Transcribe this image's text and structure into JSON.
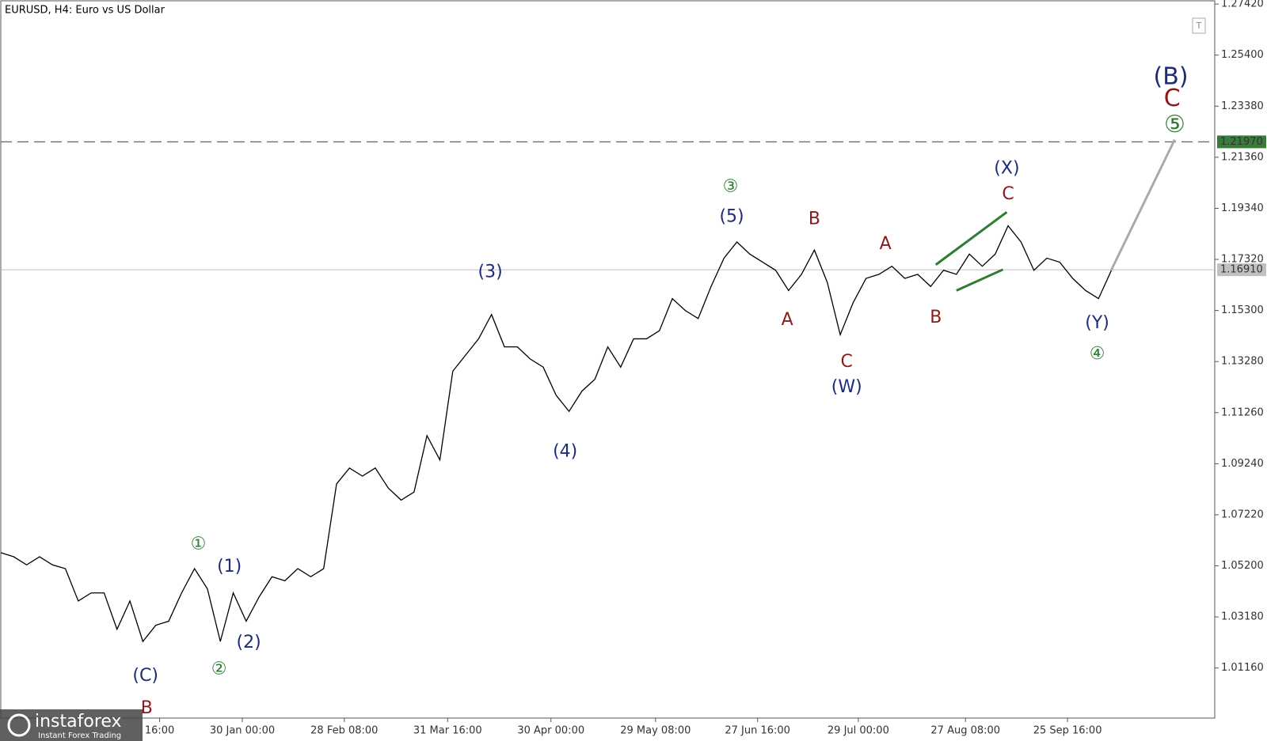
{
  "chart_data": {
    "type": "line",
    "title": "EURUSD, H4:  Euro vs US Dollar",
    "watermark": {
      "brand": "instaforex",
      "tagline": "Instant Forex Trading"
    },
    "xlim": [
      0,
      94
    ],
    "ylim": [
      0.9918,
      1.2758
    ],
    "xticks": [
      {
        "value": 12.3,
        "label": "16:00"
      },
      {
        "value": 18.7,
        "label": "30 Jan 00:00"
      },
      {
        "value": 26.6,
        "label": "28 Feb 08:00"
      },
      {
        "value": 34.6,
        "label": "31 Mar 16:00"
      },
      {
        "value": 42.6,
        "label": "30 Apr 00:00"
      },
      {
        "value": 50.7,
        "label": "29 May 08:00"
      },
      {
        "value": 58.6,
        "label": "27 Jun 16:00"
      },
      {
        "value": 66.4,
        "label": "29 Jul 00:00"
      },
      {
        "value": 74.7,
        "label": "27 Aug 08:00"
      },
      {
        "value": 82.6,
        "label": "25 Sep 16:00"
      }
    ],
    "yticks": [
      {
        "value": 1.0116,
        "label": "1.01160"
      },
      {
        "value": 1.0318,
        "label": "1.03180"
      },
      {
        "value": 1.052,
        "label": "1.05200"
      },
      {
        "value": 1.0722,
        "label": "1.07220"
      },
      {
        "value": 1.0924,
        "label": "1.09240"
      },
      {
        "value": 1.1126,
        "label": "1.11260"
      },
      {
        "value": 1.1328,
        "label": "1.13280"
      },
      {
        "value": 1.153,
        "label": "1.15300"
      },
      {
        "value": 1.1732,
        "label": "1.17320"
      },
      {
        "value": 1.1934,
        "label": "1.19340"
      },
      {
        "value": 1.2136,
        "label": "1.21360"
      },
      {
        "value": 1.2338,
        "label": "1.23380"
      },
      {
        "value": 1.254,
        "label": "1.25400"
      },
      {
        "value": 1.2742,
        "label": "1.27420"
      }
    ],
    "series": [
      {
        "color": "#000000",
        "values": [
          1.0572,
          1.0556,
          1.0524,
          1.0556,
          1.0524,
          1.0509,
          1.0381,
          1.0413,
          1.0413,
          1.0269,
          1.0381,
          1.0221,
          1.0285,
          1.0301,
          1.0413,
          1.0509,
          1.0429,
          1.0221,
          1.0413,
          1.0301,
          1.0397,
          1.0477,
          1.0461,
          1.0509,
          1.0477,
          1.0509,
          1.0844,
          1.0907,
          1.0875,
          1.0907,
          1.0828,
          1.078,
          1.0812,
          1.1035,
          1.0939,
          1.129,
          1.1354,
          1.1418,
          1.1514,
          1.1386,
          1.1386,
          1.1338,
          1.1306,
          1.1195,
          1.1131,
          1.1211,
          1.1258,
          1.1386,
          1.1306,
          1.1418,
          1.1418,
          1.145,
          1.1577,
          1.153,
          1.1498,
          1.1625,
          1.1737,
          1.1801,
          1.1753,
          1.1721,
          1.1689,
          1.1609,
          1.1673,
          1.1769,
          1.1641,
          1.1434,
          1.1561,
          1.1657,
          1.1673,
          1.1705,
          1.1657,
          1.1673,
          1.1625,
          1.1689,
          1.1673,
          1.1753,
          1.1705,
          1.1753,
          1.1865,
          1.1801,
          1.1689,
          1.1737,
          1.1721,
          1.1657,
          1.1609,
          1.1577,
          1.1689
        ]
      }
    ],
    "projection": {
      "color": "#aaaaaa",
      "x": [
        86,
        90.9
      ],
      "values": [
        1.1691,
        1.2206
      ]
    },
    "trendlines": [
      {
        "color": "#2e7d32",
        "x": [
          72.4,
          77.9
        ],
        "values": [
          1.1711,
          1.1919
        ]
      },
      {
        "color": "#2e7d32",
        "x": [
          74.0,
          77.6
        ],
        "values": [
          1.1609,
          1.1692
        ]
      }
    ],
    "levels": [
      {
        "value": 1.2197,
        "label": "1.21970",
        "color": "#3a7a3a",
        "dashed": true
      },
      {
        "value": 1.1691,
        "label": "1.16910",
        "color": "#c0c0c0",
        "dashed": false
      }
    ],
    "annotations": [
      {
        "text": "(C)",
        "x": 11.2,
        "y": 1.0084,
        "color": "#1f2a7a"
      },
      {
        "text": "B",
        "x": 11.3,
        "y": 0.9956,
        "color": "#8b1a1a"
      },
      {
        "text": "①",
        "x": 15.3,
        "y": 1.0604,
        "color": "#2e7d32"
      },
      {
        "text": "(1)",
        "x": 17.7,
        "y": 1.0515,
        "color": "#1f2a7a"
      },
      {
        "text": "②",
        "x": 16.9,
        "y": 1.011,
        "color": "#2e7d32"
      },
      {
        "text": "(2)",
        "x": 19.2,
        "y": 1.0215,
        "color": "#1f2a7a"
      },
      {
        "text": "(3)",
        "x": 37.9,
        "y": 1.168,
        "color": "#1f2a7a"
      },
      {
        "text": "(4)",
        "x": 43.7,
        "y": 1.0971,
        "color": "#1f2a7a"
      },
      {
        "text": "③",
        "x": 56.5,
        "y": 1.2018,
        "color": "#2e7d32"
      },
      {
        "text": "(5)",
        "x": 56.6,
        "y": 1.19,
        "color": "#1f2a7a"
      },
      {
        "text": "A",
        "x": 60.9,
        "y": 1.1491,
        "color": "#8b1a1a"
      },
      {
        "text": "B",
        "x": 63.0,
        "y": 1.189,
        "color": "#8b1a1a"
      },
      {
        "text": "C",
        "x": 65.5,
        "y": 1.1325,
        "color": "#8b1a1a"
      },
      {
        "text": "(W)",
        "x": 65.5,
        "y": 1.1226,
        "color": "#1f2a7a"
      },
      {
        "text": "A",
        "x": 68.5,
        "y": 1.1791,
        "color": "#8b1a1a"
      },
      {
        "text": "B",
        "x": 72.4,
        "y": 1.1501,
        "color": "#8b1a1a"
      },
      {
        "text": "(X)",
        "x": 77.9,
        "y": 1.2091,
        "color": "#1f2a7a"
      },
      {
        "text": "C",
        "x": 78.0,
        "y": 1.1989,
        "color": "#8b1a1a"
      },
      {
        "text": "(Y)",
        "x": 84.9,
        "y": 1.1478,
        "color": "#1f2a7a"
      },
      {
        "text": "④",
        "x": 84.9,
        "y": 1.1357,
        "color": "#2e7d32"
      },
      {
        "text": "(B)",
        "x": 90.6,
        "y": 1.2452,
        "color": "#1f2a7a"
      },
      {
        "text": "C",
        "x": 90.7,
        "y": 1.2365,
        "color": "#8b1a1a"
      },
      {
        "text": "⑤",
        "x": 90.9,
        "y": 1.2263,
        "color": "#2e7d32"
      }
    ]
  }
}
